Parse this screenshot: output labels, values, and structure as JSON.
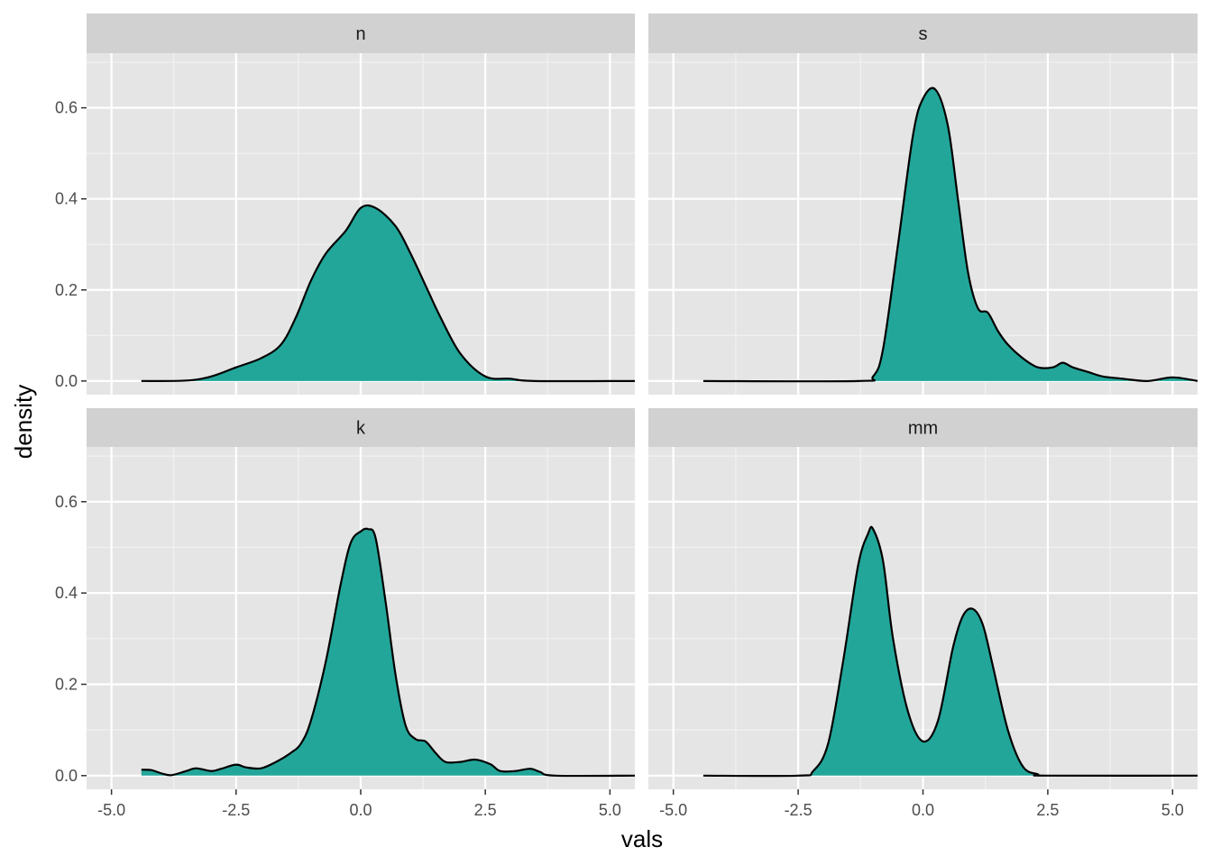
{
  "colors": {
    "panel_background": "#e5e5e5",
    "strip_background": "#d1d1d1",
    "grid_major": "#ffffff",
    "grid_minor": "#f2f2f2",
    "fill": "#22a69a",
    "line": "#000000",
    "tick_text": "#4d4d4d"
  },
  "chart_data": {
    "type": "area",
    "subtype": "faceted density",
    "xlabel": "vals",
    "ylabel": "density",
    "xlim": [
      -5.5,
      5.5
    ],
    "ylim": [
      -0.03,
      0.72
    ],
    "xticks": [
      -5.0,
      -2.5,
      0.0,
      2.5,
      5.0
    ],
    "xtick_labels": [
      "-5.0",
      "-2.5",
      "0.0",
      "2.5",
      "5.0"
    ],
    "yticks": [
      0.0,
      0.2,
      0.4,
      0.6
    ],
    "ytick_labels": [
      "0.0",
      "0.2",
      "0.4",
      "0.6"
    ],
    "grid": true,
    "facets": [
      {
        "label": "n",
        "x": [
          -4.4,
          -3.5,
          -3.0,
          -2.5,
          -2.0,
          -1.6,
          -1.3,
          -1.0,
          -0.7,
          -0.3,
          0.0,
          0.3,
          0.7,
          1.0,
          1.3,
          1.6,
          2.0,
          2.5,
          3.0,
          3.5,
          5.5
        ],
        "y": [
          0.0,
          0.001,
          0.01,
          0.03,
          0.05,
          0.08,
          0.14,
          0.22,
          0.28,
          0.33,
          0.38,
          0.38,
          0.34,
          0.28,
          0.21,
          0.14,
          0.06,
          0.01,
          0.005,
          0.0,
          0.0
        ]
      },
      {
        "label": "s",
        "x": [
          -4.4,
          -1.3,
          -1.0,
          -0.8,
          -0.5,
          -0.2,
          0.0,
          0.25,
          0.5,
          0.7,
          0.9,
          1.1,
          1.3,
          1.5,
          1.7,
          2.0,
          2.3,
          2.6,
          2.8,
          3.0,
          3.3,
          3.6,
          4.0,
          4.5,
          5.0,
          5.5
        ],
        "y": [
          0.0,
          0.0,
          0.01,
          0.07,
          0.3,
          0.54,
          0.62,
          0.64,
          0.56,
          0.4,
          0.24,
          0.16,
          0.15,
          0.11,
          0.08,
          0.05,
          0.03,
          0.03,
          0.04,
          0.03,
          0.02,
          0.01,
          0.005,
          0.0,
          0.008,
          0.0
        ]
      },
      {
        "label": "k",
        "x": [
          -4.4,
          -4.2,
          -4.0,
          -3.8,
          -3.5,
          -3.3,
          -3.0,
          -2.8,
          -2.5,
          -2.3,
          -2.0,
          -1.7,
          -1.4,
          -1.2,
          -1.0,
          -0.7,
          -0.4,
          -0.2,
          0.0,
          0.15,
          0.3,
          0.5,
          0.7,
          0.9,
          1.1,
          1.3,
          1.5,
          1.7,
          2.0,
          2.3,
          2.6,
          2.8,
          3.1,
          3.4,
          3.6,
          3.9,
          5.5
        ],
        "y": [
          0.013,
          0.012,
          0.005,
          0.001,
          0.01,
          0.016,
          0.01,
          0.015,
          0.024,
          0.018,
          0.016,
          0.03,
          0.05,
          0.07,
          0.12,
          0.25,
          0.42,
          0.51,
          0.535,
          0.54,
          0.52,
          0.38,
          0.22,
          0.11,
          0.08,
          0.075,
          0.05,
          0.03,
          0.03,
          0.035,
          0.025,
          0.01,
          0.01,
          0.015,
          0.008,
          0.0,
          0.0
        ]
      },
      {
        "label": "mm",
        "x": [
          -4.4,
          -2.5,
          -2.2,
          -1.9,
          -1.6,
          -1.3,
          -1.1,
          -1.0,
          -0.8,
          -0.6,
          -0.3,
          0.0,
          0.3,
          0.6,
          0.8,
          1.0,
          1.2,
          1.4,
          1.7,
          2.0,
          2.3,
          2.5,
          5.5
        ],
        "y": [
          0.0,
          0.0,
          0.01,
          0.07,
          0.25,
          0.46,
          0.53,
          0.54,
          0.47,
          0.3,
          0.14,
          0.075,
          0.12,
          0.28,
          0.35,
          0.365,
          0.33,
          0.24,
          0.1,
          0.02,
          0.003,
          0.0,
          0.0
        ]
      }
    ]
  }
}
